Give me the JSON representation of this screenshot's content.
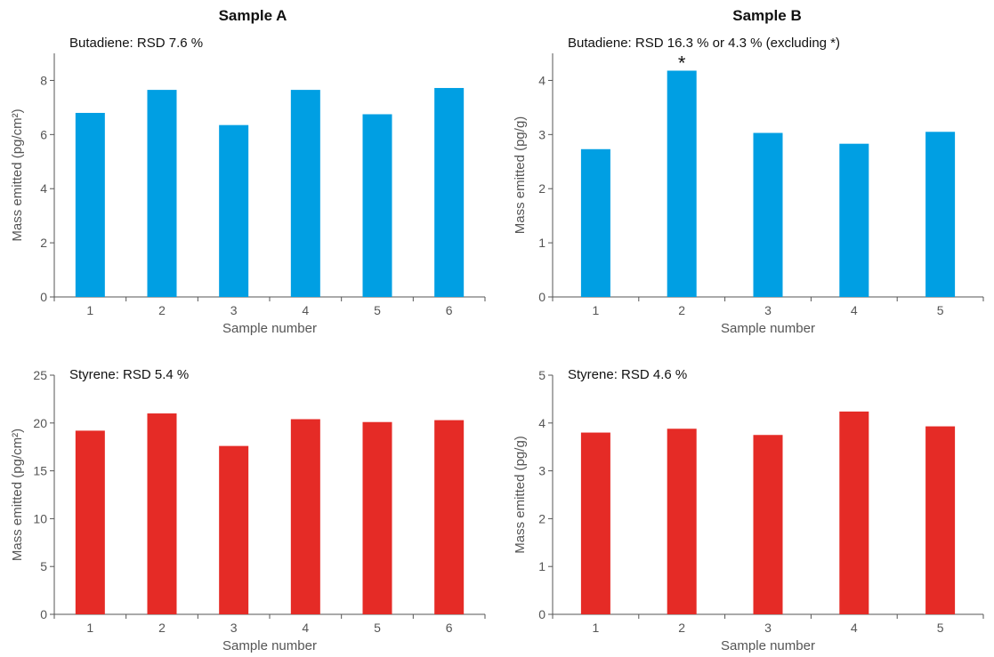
{
  "column_titles": [
    "Sample A",
    "Sample B"
  ],
  "chart_data": [
    {
      "type": "bar",
      "title": "Sample A",
      "annotation": "Butadiene: RSD 7.6 %",
      "xlabel": "Sample number",
      "ylabel": "Mass emitted (pg/cm²)",
      "categories": [
        "1",
        "2",
        "3",
        "4",
        "5",
        "6"
      ],
      "values": [
        6.8,
        7.65,
        6.35,
        7.65,
        6.75,
        7.72
      ],
      "ylim": [
        0,
        9
      ],
      "yticks": [
        0,
        2,
        4,
        6,
        8
      ],
      "color": "#009fe3",
      "grid": false,
      "markers": []
    },
    {
      "type": "bar",
      "title": "Sample B",
      "annotation": "Butadiene: RSD 16.3 % or 4.3 % (excluding *)",
      "xlabel": "Sample number",
      "ylabel": "Mass emitted (pg/g)",
      "categories": [
        "1",
        "2",
        "3",
        "4",
        "5"
      ],
      "values": [
        2.73,
        4.18,
        3.03,
        2.83,
        3.05
      ],
      "ylim": [
        0,
        4.5
      ],
      "yticks": [
        0,
        1,
        2,
        3,
        4
      ],
      "color": "#009fe3",
      "grid": false,
      "markers": [
        {
          "index": 1,
          "text": "*"
        }
      ]
    },
    {
      "type": "bar",
      "title": "",
      "annotation": "Styrene: RSD 5.4 %",
      "xlabel": "Sample number",
      "ylabel": "Mass emitted (pg/cm²)",
      "categories": [
        "1",
        "2",
        "3",
        "4",
        "5",
        "6"
      ],
      "values": [
        19.2,
        21.0,
        17.6,
        20.4,
        20.1,
        20.3
      ],
      "ylim": [
        0,
        25
      ],
      "yticks": [
        0,
        5,
        10,
        15,
        20,
        25
      ],
      "color": "#e52b26",
      "grid": false,
      "markers": []
    },
    {
      "type": "bar",
      "title": "",
      "annotation": "Styrene: RSD 4.6 %",
      "xlabel": "Sample number",
      "ylabel": "Mass emitted (pg/g)",
      "categories": [
        "1",
        "2",
        "3",
        "4",
        "5"
      ],
      "values": [
        3.8,
        3.88,
        3.75,
        4.24,
        3.93
      ],
      "ylim": [
        0,
        5
      ],
      "yticks": [
        0,
        1,
        2,
        3,
        4,
        5
      ],
      "color": "#e52b26",
      "grid": false,
      "markers": []
    }
  ]
}
